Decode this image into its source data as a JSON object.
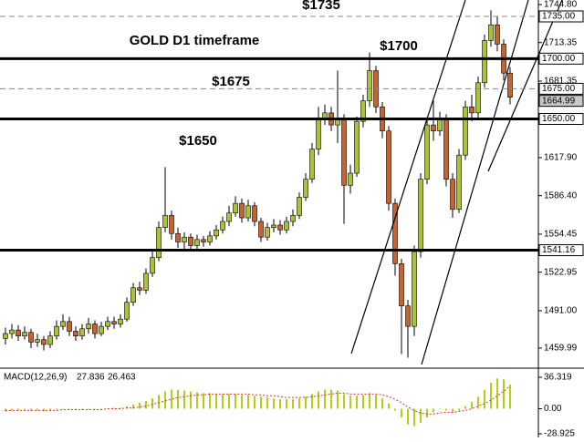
{
  "chart_data": {
    "type": "candlestick",
    "up_color": "#a9c23a",
    "down_color": "#c8622e",
    "annotations": [
      "$1735",
      "GOLD D1 timeframe",
      "$1700",
      "$1675",
      "$1650"
    ],
    "ylim": [
      1444.1,
      1748.6
    ],
    "yticks": [
      {
        "value": 1744.8,
        "label": "1744.80"
      },
      1713.35,
      1681.35,
      {
        "value": 1617.9,
        "label": "1617.90"
      },
      {
        "value": 1586.4,
        "label": "1586.40"
      },
      1554.45,
      1522.95,
      {
        "value": 1491,
        "label": "1491.00"
      },
      1459.99
    ],
    "levels": [
      {
        "value": 1735,
        "label": "1735.00",
        "style": "dashed"
      },
      {
        "value": 1700,
        "label": "1700.00",
        "style": "thick"
      },
      {
        "value": 1675,
        "label": "1675.00",
        "style": "dashed"
      },
      {
        "value": 1650,
        "label": "1650.00",
        "style": "thick"
      },
      {
        "value": 1541.16,
        "label": "1541.16",
        "style": "thick"
      }
    ],
    "last_price": {
      "value": 1664.99,
      "label": "1664.99"
    },
    "open": [
      1468,
      1472,
      1475,
      1470,
      1473,
      1465,
      1467,
      1463,
      1470,
      1478,
      1482,
      1474,
      1470,
      1476,
      1480,
      1472,
      1478,
      1482,
      1480,
      1484,
      1498,
      1510,
      1508,
      1522,
      1535,
      1560,
      1570,
      1555,
      1548,
      1552,
      1545,
      1550,
      1548,
      1553,
      1558,
      1565,
      1572,
      1580,
      1568,
      1578,
      1565,
      1552,
      1560,
      1562,
      1558,
      1565,
      1570,
      1585,
      1600,
      1625,
      1650,
      1655,
      1645,
      1650,
      1595,
      1605,
      1648,
      1665,
      1690,
      1660,
      1640,
      1580,
      1530,
      1495,
      1478,
      1540,
      1600,
      1645,
      1640,
      1650,
      1600,
      1575,
      1620,
      1660,
      1655,
      1680,
      1715,
      1728,
      1712,
      1688
    ],
    "high": [
      1477,
      1480,
      1479,
      1478,
      1476,
      1472,
      1470,
      1474,
      1483,
      1488,
      1486,
      1478,
      1480,
      1485,
      1483,
      1482,
      1486,
      1486,
      1488,
      1502,
      1514,
      1515,
      1526,
      1540,
      1565,
      1610,
      1574,
      1560,
      1556,
      1555,
      1554,
      1553,
      1557,
      1562,
      1569,
      1578,
      1586,
      1584,
      1583,
      1581,
      1568,
      1564,
      1567,
      1566,
      1569,
      1575,
      1589,
      1605,
      1630,
      1660,
      1662,
      1660,
      1690,
      1654,
      1612,
      1652,
      1670,
      1705,
      1694,
      1664,
      1644,
      1584,
      1534,
      1500,
      1545,
      1605,
      1650,
      1665,
      1656,
      1654,
      1605,
      1625,
      1665,
      1670,
      1685,
      1720,
      1740,
      1735,
      1716,
      1693
    ],
    "low": [
      1463,
      1468,
      1466,
      1467,
      1460,
      1461,
      1458,
      1460,
      1467,
      1475,
      1470,
      1466,
      1467,
      1472,
      1468,
      1470,
      1475,
      1476,
      1477,
      1482,
      1495,
      1504,
      1505,
      1519,
      1532,
      1556,
      1550,
      1543,
      1540,
      1541,
      1542,
      1544,
      1545,
      1550,
      1555,
      1561,
      1569,
      1564,
      1565,
      1561,
      1548,
      1549,
      1556,
      1554,
      1555,
      1561,
      1567,
      1582,
      1597,
      1620,
      1645,
      1640,
      1630,
      1563,
      1588,
      1602,
      1643,
      1660,
      1655,
      1634,
      1574,
      1520,
      1455,
      1452,
      1470,
      1535,
      1596,
      1632,
      1636,
      1594,
      1568,
      1572,
      1616,
      1648,
      1650,
      1676,
      1710,
      1706,
      1682,
      1662
    ],
    "close": [
      1472,
      1475,
      1470,
      1473,
      1465,
      1467,
      1463,
      1470,
      1478,
      1482,
      1474,
      1470,
      1476,
      1480,
      1472,
      1478,
      1482,
      1480,
      1484,
      1498,
      1510,
      1508,
      1522,
      1535,
      1560,
      1570,
      1555,
      1548,
      1552,
      1545,
      1550,
      1548,
      1553,
      1558,
      1565,
      1572,
      1580,
      1568,
      1578,
      1565,
      1552,
      1560,
      1562,
      1558,
      1565,
      1570,
      1585,
      1600,
      1625,
      1650,
      1655,
      1645,
      1650,
      1595,
      1605,
      1648,
      1665,
      1690,
      1660,
      1640,
      1580,
      1530,
      1495,
      1478,
      1540,
      1600,
      1645,
      1640,
      1650,
      1600,
      1575,
      1620,
      1660,
      1655,
      1680,
      1715,
      1728,
      1712,
      1688,
      1668
    ],
    "macd": {
      "name": "MACD(12,26,9)",
      "color": "#b5cc18",
      "signal_color": "#e03030",
      "ylim": [
        -28.925,
        36.319
      ],
      "yticks": [
        36.319,
        {
          "value": 0,
          "label": "0.00"
        },
        -28.925
      ],
      "main": [
        -3,
        -2,
        -2,
        -1,
        -2,
        -2,
        -3,
        -2,
        -1,
        0,
        0,
        -1,
        -1,
        0,
        0,
        -1,
        0,
        1,
        1,
        3,
        5,
        7,
        9,
        12,
        16,
        20,
        22,
        22,
        21,
        20,
        19,
        18,
        18,
        17,
        17,
        17,
        17,
        16,
        16,
        15,
        14,
        13,
        12,
        11,
        11,
        11,
        12,
        14,
        17,
        20,
        22,
        22,
        21,
        17,
        15,
        15,
        16,
        18,
        16,
        12,
        6,
        -2,
        -10,
        -18,
        -20,
        -16,
        -10,
        -4,
        0,
        -2,
        -4,
        -2,
        3,
        8,
        14,
        22,
        30,
        35,
        34,
        27.836
      ],
      "signal": [
        -2,
        -2,
        -2,
        -2,
        -2,
        -2,
        -2,
        -2,
        -2,
        -1,
        -1,
        -1,
        -1,
        -1,
        -1,
        -1,
        0,
        0,
        0,
        1,
        1,
        2,
        3,
        5,
        7,
        9,
        11,
        13,
        14,
        15,
        16,
        16,
        17,
        17,
        17,
        17,
        17,
        17,
        17,
        16,
        16,
        15,
        15,
        14,
        13,
        13,
        13,
        13,
        14,
        15,
        16,
        17,
        18,
        18,
        17,
        17,
        17,
        17,
        17,
        16,
        14,
        11,
        7,
        2,
        -2,
        -5,
        -6,
        -6,
        -5,
        -4,
        -4,
        -3,
        -2,
        0,
        3,
        6,
        10,
        15,
        20,
        26.463
      ]
    }
  }
}
